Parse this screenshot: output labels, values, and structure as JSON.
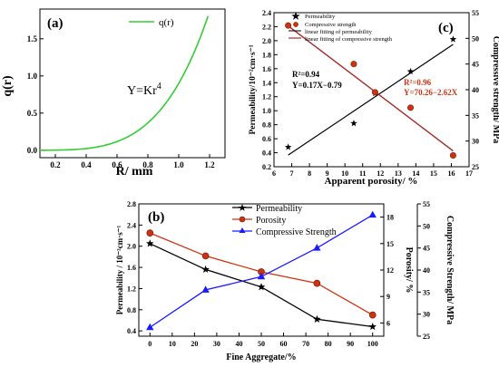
{
  "chart_data": [
    {
      "type": "line",
      "panel_label": "(a)",
      "xlabel": "R/ mm",
      "ylabel": "q(r)",
      "xlim": [
        0.1,
        1.3
      ],
      "ylim": [
        -0.1,
        1.9
      ],
      "xticks": [
        "0.2",
        "0.4",
        "0.6",
        "0.8",
        "1.0",
        "1.2"
      ],
      "yticks": [
        "0.0",
        "0.5",
        "1.0",
        "1.5"
      ],
      "equation": "Y=Kr",
      "equation_exponent": "4",
      "series": [
        {
          "name": "q(r)",
          "color": "#33cc33",
          "function": "y = K*x^4",
          "K": 0.9,
          "x_range": [
            0.1,
            1.19
          ]
        }
      ]
    },
    {
      "type": "scatter",
      "panel_label": "(c)",
      "xlabel": "Apparent porosity/ %",
      "ylabel": "Permeability/10⁻²cm·s⁻¹",
      "ylabel_right": "Compressive strength/ MPa",
      "xlim": [
        6,
        17
      ],
      "ylim": [
        0.2,
        2.4
      ],
      "ylim_right": [
        25,
        55
      ],
      "xticks": [
        "6",
        "7",
        "8",
        "9",
        "10",
        "11",
        "12",
        "13",
        "14",
        "15",
        "16",
        "17"
      ],
      "yticks": [
        "0.2",
        "0.4",
        "0.6",
        "0.8",
        "1.0",
        "1.2",
        "1.4",
        "1.6",
        "1.8",
        "2.0",
        "2.2",
        "2.4"
      ],
      "yticks_right": [
        "25",
        "30",
        "35",
        "40",
        "45",
        "50",
        "55"
      ],
      "legend": [
        "Permeability",
        "Compressive strength",
        "linear fitting of permeability",
        "linear fitting of compressive strength"
      ],
      "annotation_permeability": [
        "R²=0.94",
        "Y=0.17X−0.79"
      ],
      "annotation_strength": [
        "R²=0.96",
        "Y=70.26−2.62X"
      ],
      "series": [
        {
          "name": "Permeability",
          "axis": "left",
          "color": "#000000",
          "x": [
            6.8,
            10.5,
            11.7,
            13.7,
            16.1
          ],
          "y": [
            0.48,
            0.82,
            1.25,
            1.56,
            2.02
          ]
        },
        {
          "name": "Compressive strength",
          "axis": "right",
          "color": "#cc3311",
          "x": [
            6.8,
            10.5,
            11.7,
            13.7,
            16.1
          ],
          "y": [
            52.5,
            45.0,
            39.5,
            36.5,
            27.2
          ]
        },
        {
          "name": "linear fitting of permeability",
          "axis": "left",
          "color": "#000000",
          "x": [
            6.8,
            16.1
          ],
          "y": [
            0.366,
            1.947
          ]
        },
        {
          "name": "linear fitting of compressive strength",
          "axis": "right",
          "color": "#a52a2a",
          "x": [
            6.8,
            16.1
          ],
          "y": [
            52.44,
            28.08
          ]
        }
      ]
    },
    {
      "type": "line",
      "panel_label": "(b)",
      "xlabel": "Fine Aggregate/%",
      "ylabel": "Permeability / 10⁻²cm·s⁻¹",
      "ylabel_right1": "Porosity/ %",
      "ylabel_right2": "Compressive Strength/ MPa",
      "xlim": [
        -5,
        105
      ],
      "ylim": [
        0.3,
        2.8
      ],
      "ylim_right1": [
        4.5,
        19.5
      ],
      "ylim_right2": [
        25,
        55
      ],
      "categories": [
        0,
        25,
        50,
        75,
        100
      ],
      "xticks": [
        "0",
        "10",
        "20",
        "30",
        "40",
        "50",
        "60",
        "70",
        "80",
        "90",
        "100"
      ],
      "yticks": [
        "0.4",
        "0.8",
        "1.2",
        "1.6",
        "2.0",
        "2.4",
        "2.8"
      ],
      "yticks_right1": [
        "6",
        "9",
        "12",
        "15",
        "18"
      ],
      "yticks_right2": [
        "25",
        "30",
        "35",
        "40",
        "45",
        "50",
        "55"
      ],
      "series": [
        {
          "name": "Permeability",
          "axis": "left",
          "color": "#000000",
          "marker": "star",
          "values": [
            2.05,
            1.56,
            1.23,
            0.62,
            0.48
          ]
        },
        {
          "name": "Porosity",
          "axis": "right1",
          "color": "#cc3311",
          "marker": "circle",
          "values": [
            16.2,
            13.6,
            11.8,
            10.5,
            6.9
          ]
        },
        {
          "name": "Compressive Strength",
          "axis": "right2",
          "color": "#1a1aff",
          "marker": "triangle",
          "values": [
            27.0,
            35.5,
            38.5,
            45.0,
            52.5
          ]
        }
      ]
    }
  ]
}
